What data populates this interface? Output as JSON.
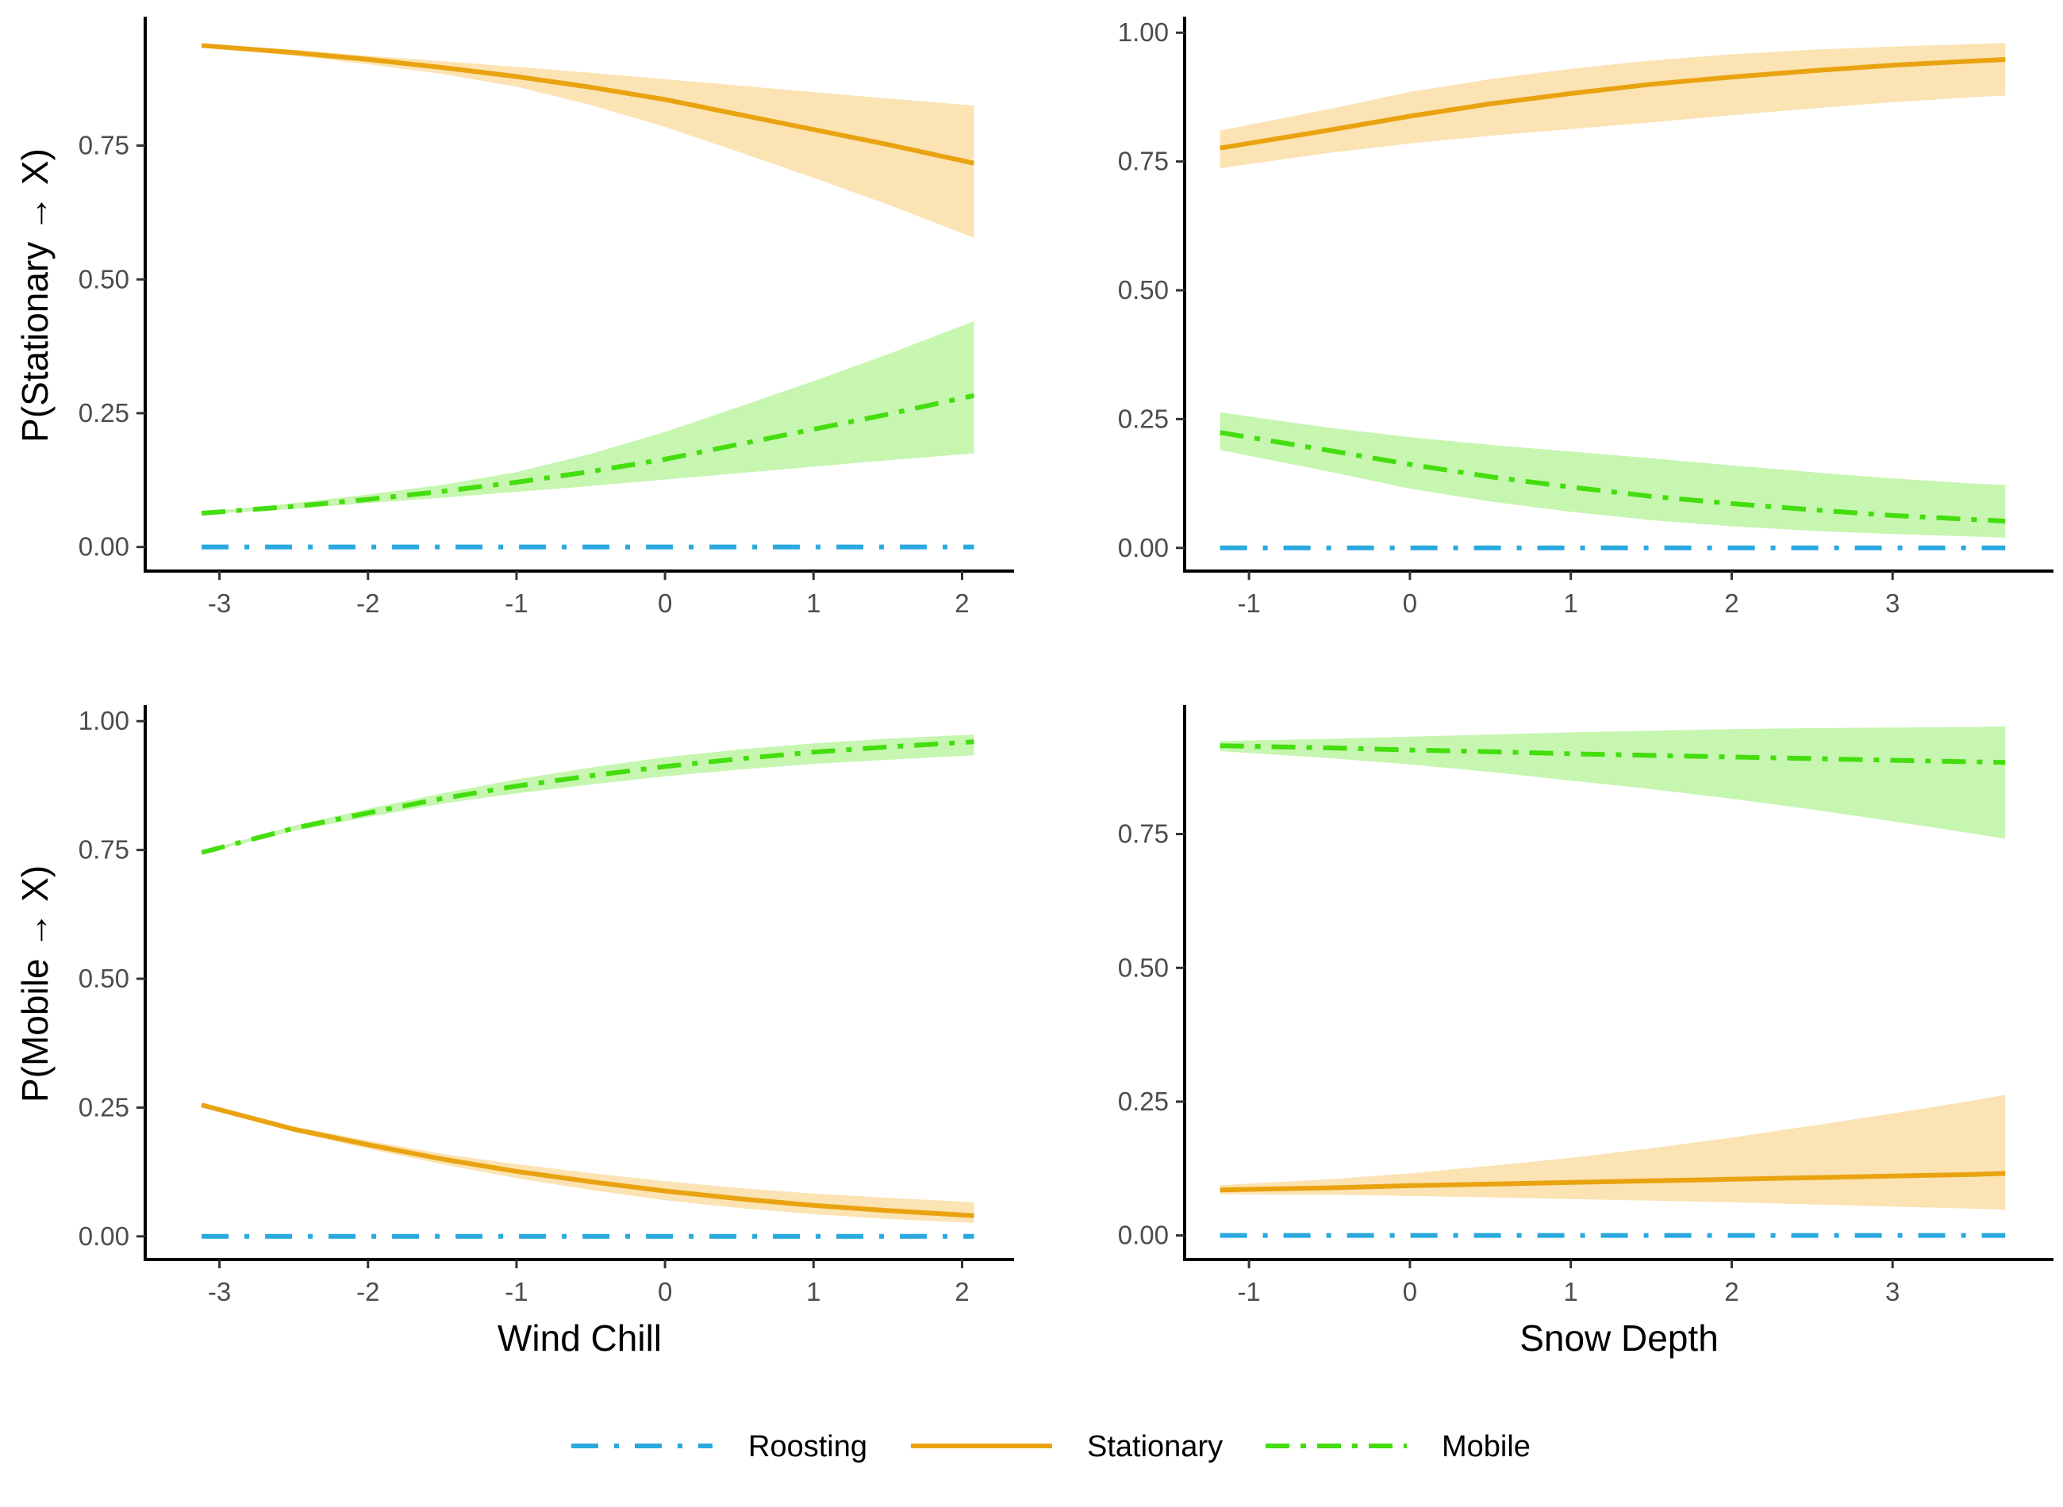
{
  "legend": {
    "items": [
      {
        "label": "Roosting",
        "color": "#29a9df",
        "fill": "none",
        "dash": "longdash-dot"
      },
      {
        "label": "Stationary",
        "color": "#e9a310",
        "fill": "#fbe3b4",
        "dash": "solid"
      },
      {
        "label": "Mobile",
        "color": "#44dd0e",
        "fill": "#c6f6b0",
        "dash": "dash-dot"
      }
    ]
  },
  "chart_data": [
    {
      "type": "line",
      "panel": "top-left",
      "ylabel": "P(Stationary → X)",
      "xlabel": "",
      "xlim": [
        -3.5,
        2.35
      ],
      "ylim": [
        -0.045,
        0.985
      ],
      "xticks": [
        "-3",
        "-2",
        "-1",
        "0",
        "1",
        "2"
      ],
      "yticks": [
        "0.00",
        "0.25",
        "0.50",
        "0.75"
      ],
      "x": [
        -3.12,
        -2.5,
        -2.0,
        -1.5,
        -1.0,
        -0.5,
        0.0,
        0.5,
        1.0,
        1.5,
        2.08
      ],
      "series": [
        {
          "name": "Roosting",
          "values": [
            0,
            0,
            0,
            0,
            0,
            0,
            0,
            0,
            0,
            0,
            0
          ]
        },
        {
          "name": "Stationary",
          "values": [
            0.937,
            0.924,
            0.911,
            0.896,
            0.879,
            0.859,
            0.836,
            0.808,
            0.78,
            0.752,
            0.717
          ],
          "lower": [
            0.935,
            0.918,
            0.902,
            0.884,
            0.86,
            0.826,
            0.785,
            0.738,
            0.69,
            0.64,
            0.578
          ],
          "upper": [
            0.939,
            0.929,
            0.918,
            0.908,
            0.897,
            0.886,
            0.874,
            0.862,
            0.85,
            0.838,
            0.825
          ]
        },
        {
          "name": "Mobile",
          "values": [
            0.063,
            0.076,
            0.089,
            0.104,
            0.121,
            0.141,
            0.164,
            0.192,
            0.22,
            0.248,
            0.283
          ],
          "lower": [
            0.061,
            0.071,
            0.082,
            0.092,
            0.103,
            0.114,
            0.126,
            0.138,
            0.15,
            0.162,
            0.175
          ],
          "upper": [
            0.065,
            0.082,
            0.098,
            0.116,
            0.14,
            0.174,
            0.215,
            0.262,
            0.31,
            0.36,
            0.422
          ]
        }
      ]
    },
    {
      "type": "line",
      "panel": "top-right",
      "ylabel": "",
      "xlabel": "",
      "xlim": [
        -1.4,
        4.0
      ],
      "ylim": [
        -0.045,
        1.025
      ],
      "xticks": [
        "-1",
        "0",
        "1",
        "2",
        "3"
      ],
      "yticks": [
        "0.00",
        "0.25",
        "0.50",
        "0.75",
        "1.00"
      ],
      "x": [
        -1.18,
        -0.5,
        0.0,
        0.5,
        1.0,
        1.5,
        2.0,
        2.5,
        3.0,
        3.5,
        3.7
      ],
      "series": [
        {
          "name": "Roosting",
          "values": [
            0,
            0,
            0,
            0,
            0,
            0,
            0,
            0,
            0,
            0,
            0
          ]
        },
        {
          "name": "Stationary",
          "values": [
            0.776,
            0.811,
            0.838,
            0.862,
            0.882,
            0.9,
            0.914,
            0.926,
            0.937,
            0.945,
            0.948
          ],
          "lower": [
            0.737,
            0.767,
            0.785,
            0.8,
            0.813,
            0.826,
            0.84,
            0.853,
            0.865,
            0.875,
            0.878
          ],
          "upper": [
            0.81,
            0.852,
            0.885,
            0.91,
            0.93,
            0.946,
            0.958,
            0.967,
            0.973,
            0.978,
            0.98
          ]
        },
        {
          "name": "Mobile",
          "values": [
            0.224,
            0.189,
            0.162,
            0.138,
            0.118,
            0.1,
            0.086,
            0.074,
            0.063,
            0.055,
            0.052
          ],
          "lower": [
            0.19,
            0.148,
            0.115,
            0.09,
            0.07,
            0.054,
            0.042,
            0.033,
            0.027,
            0.022,
            0.02
          ],
          "upper": [
            0.263,
            0.233,
            0.215,
            0.2,
            0.187,
            0.174,
            0.16,
            0.147,
            0.135,
            0.125,
            0.122
          ]
        }
      ]
    },
    {
      "type": "line",
      "panel": "bottom-left",
      "ylabel": "P(Mobile → X)",
      "xlabel": "Wind Chill",
      "xlim": [
        -3.5,
        2.35
      ],
      "ylim": [
        -0.045,
        1.025
      ],
      "xticks": [
        "-3",
        "-2",
        "-1",
        "0",
        "1",
        "2"
      ],
      "yticks": [
        "0.00",
        "0.25",
        "0.50",
        "0.75",
        "1.00"
      ],
      "x": [
        -3.12,
        -2.5,
        -2.0,
        -1.5,
        -1.0,
        -0.5,
        0.0,
        0.5,
        1.0,
        1.5,
        2.08
      ],
      "series": [
        {
          "name": "Roosting",
          "values": [
            0,
            0,
            0,
            0,
            0,
            0,
            0,
            0,
            0,
            0,
            0
          ]
        },
        {
          "name": "Stationary",
          "values": [
            0.255,
            0.208,
            0.178,
            0.15,
            0.126,
            0.106,
            0.088,
            0.073,
            0.06,
            0.05,
            0.04
          ],
          "lower": [
            0.253,
            0.203,
            0.17,
            0.14,
            0.113,
            0.09,
            0.07,
            0.055,
            0.043,
            0.034,
            0.026
          ],
          "upper": [
            0.257,
            0.213,
            0.186,
            0.16,
            0.14,
            0.123,
            0.107,
            0.094,
            0.083,
            0.075,
            0.066
          ]
        },
        {
          "name": "Mobile",
          "values": [
            0.745,
            0.792,
            0.822,
            0.85,
            0.874,
            0.894,
            0.912,
            0.927,
            0.94,
            0.95,
            0.96
          ],
          "lower": [
            0.743,
            0.787,
            0.814,
            0.84,
            0.86,
            0.877,
            0.893,
            0.906,
            0.917,
            0.925,
            0.934
          ],
          "upper": [
            0.747,
            0.797,
            0.83,
            0.86,
            0.887,
            0.91,
            0.93,
            0.945,
            0.957,
            0.966,
            0.974
          ]
        }
      ]
    },
    {
      "type": "line",
      "panel": "bottom-right",
      "ylabel": "",
      "xlabel": "Snow Depth",
      "xlim": [
        -1.4,
        4.0
      ],
      "ylim": [
        -0.045,
        0.985
      ],
      "xticks": [
        "-1",
        "0",
        "1",
        "2",
        "3"
      ],
      "yticks": [
        "0.00",
        "0.25",
        "0.50",
        "0.75"
      ],
      "x": [
        -1.18,
        -0.5,
        0.0,
        0.5,
        1.0,
        1.5,
        2.0,
        2.5,
        3.0,
        3.5,
        3.7
      ],
      "series": [
        {
          "name": "Roosting",
          "values": [
            0,
            0,
            0,
            0,
            0,
            0,
            0,
            0,
            0,
            0,
            0
          ]
        },
        {
          "name": "Stationary",
          "values": [
            0.085,
            0.089,
            0.093,
            0.096,
            0.099,
            0.102,
            0.105,
            0.108,
            0.111,
            0.114,
            0.116
          ],
          "lower": [
            0.077,
            0.076,
            0.074,
            0.071,
            0.068,
            0.065,
            0.062,
            0.058,
            0.054,
            0.05,
            0.048
          ],
          "upper": [
            0.094,
            0.105,
            0.116,
            0.13,
            0.145,
            0.163,
            0.183,
            0.205,
            0.228,
            0.252,
            0.263
          ]
        },
        {
          "name": "Mobile",
          "values": [
            0.915,
            0.911,
            0.907,
            0.904,
            0.9,
            0.897,
            0.894,
            0.891,
            0.888,
            0.885,
            0.884
          ],
          "lower": [
            0.905,
            0.892,
            0.88,
            0.866,
            0.85,
            0.834,
            0.816,
            0.796,
            0.774,
            0.751,
            0.741
          ],
          "upper": [
            0.924,
            0.928,
            0.932,
            0.936,
            0.94,
            0.943,
            0.946,
            0.948,
            0.949,
            0.95,
            0.951
          ]
        }
      ]
    }
  ]
}
